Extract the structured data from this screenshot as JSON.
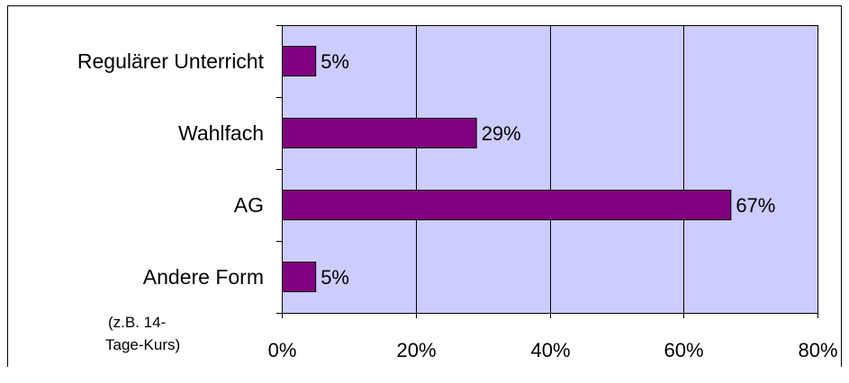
{
  "chart_data": {
    "type": "bar",
    "orientation": "horizontal",
    "categories": [
      "Regulärer Unterricht",
      "Wahlfach",
      "AG",
      "Andere Form"
    ],
    "category_note": [
      "(z.B. 14-",
      "Tage-Kurs)"
    ],
    "values": [
      5,
      29,
      67,
      5
    ],
    "data_labels": [
      "5%",
      "29%",
      "67%",
      "5%"
    ],
    "xlim": [
      0,
      80
    ],
    "xticks": [
      "0%",
      "20%",
      "40%",
      "60%",
      "80%"
    ],
    "grid": "vertical",
    "title": "",
    "xlabel": "",
    "ylabel": "",
    "colors": {
      "bar": "#800080",
      "plot_background": "#ccccff",
      "gridline": "#000000",
      "border": "#000000"
    }
  }
}
